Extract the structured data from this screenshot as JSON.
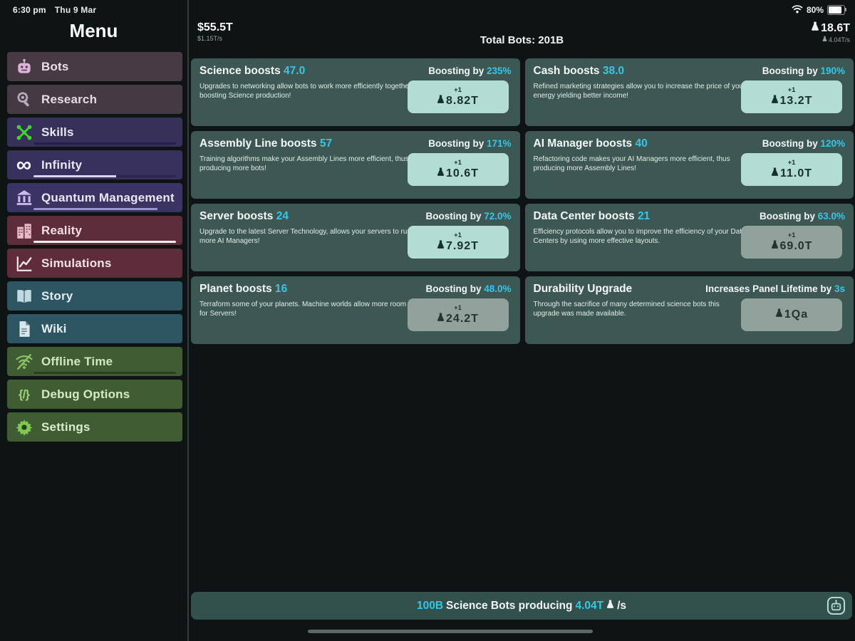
{
  "colors": {
    "accent": "#35c7ea",
    "card_bg": "#3d5852",
    "button_enabled": "#b2dcd4",
    "button_disabled": "#91a29d",
    "bottom_bar_bg": "#32514c"
  },
  "status_bar": {
    "time": "6:30 pm",
    "date": "Thu 9 Mar",
    "battery_percent": "80%",
    "battery_level": 0.8
  },
  "sidebar": {
    "title": "Menu",
    "items": [
      {
        "label": "Bots",
        "icon": "robot-icon",
        "bg": "#473a45",
        "label_color": "#ecdfe9",
        "icon_color": "#dcb4d6"
      },
      {
        "label": "Research",
        "icon": "research-icon",
        "bg": "#453a44",
        "label_color": "#e6dbe4",
        "icon_color": "#bcabbc"
      },
      {
        "label": "Skills",
        "icon": "network-icon",
        "bg": "#37315a",
        "label_color": "#e9e6f4",
        "icon_color": "#3ed62c",
        "progress": {
          "fill": 0,
          "fill_color": "#d8d4f4",
          "track_color": "#262051"
        }
      },
      {
        "label": "Infinity",
        "icon": "infinity-icon",
        "bg": "#38315e",
        "label_color": "#e9e6f6",
        "icon_color": "#f4f2fc",
        "progress": {
          "fill": 0.58,
          "fill_color": "#d9d5f5",
          "track_color": "#2a2450"
        }
      },
      {
        "label": "Quantum Management",
        "icon": "bank-icon",
        "bg": "#3a3363",
        "label_color": "#ece6f9",
        "icon_color": "#cabdee",
        "progress": {
          "fill": 0.87,
          "fill_color": "#9b92cc",
          "track_color": "transparent"
        }
      },
      {
        "label": "Reality",
        "icon": "buildings-icon",
        "bg": "#5e2d3c",
        "label_color": "#f4dfe7",
        "icon_color": "#eab9ca",
        "progress": {
          "fill": 1,
          "fill_color": "#f6eff2",
          "track_color": "transparent"
        }
      },
      {
        "label": "Simulations",
        "icon": "chart-icon",
        "bg": "#5e2c3a",
        "label_color": "#f4e3e9",
        "icon_color": "#f2e8ec"
      },
      {
        "label": "Story",
        "icon": "book-icon",
        "bg": "#2d5662",
        "label_color": "#dfedf2",
        "icon_color": "#c0dae4"
      },
      {
        "label": "Wiki",
        "icon": "document-icon",
        "bg": "#2d5662",
        "label_color": "#e4f0f4",
        "icon_color": "#d8e8ee"
      },
      {
        "label": "Offline Time",
        "icon": "wifi-off-icon",
        "bg": "#405c33",
        "label_color": "#d2e8c0",
        "icon_color": "#8fc268",
        "progress": {
          "fill": 1,
          "fill_color": "#2b401f",
          "track_color": "transparent"
        }
      },
      {
        "label": "Debug Options",
        "icon": "code-icon",
        "bg": "#405c33",
        "label_color": "#d7eac8",
        "icon_color": "#9ed07a"
      },
      {
        "label": "Settings",
        "icon": "gear-icon",
        "bg": "#405c33",
        "label_color": "#daecce",
        "icon_color": "#7ec951"
      }
    ]
  },
  "header": {
    "cash": "$55.5T",
    "cash_rate": "$1.15T/s",
    "total_bots": "Total Bots: 201B",
    "science": "18.6T",
    "science_rate": "4.04T/s"
  },
  "cards": [
    {
      "title": "Science boosts",
      "value": "47.0",
      "boost_label": "Boosting by",
      "boost_value": "235%",
      "description": "Upgrades to networking allow bots to work more efficiently together boosting Science production!",
      "button": {
        "plus": "+1",
        "cost": "8.82T",
        "enabled": true
      }
    },
    {
      "title": "Cash boosts",
      "value": "38.0",
      "boost_label": "Boosting by",
      "boost_value": "190%",
      "description": "Refined marketing strategies allow you to increase the price of your energy yielding better income!",
      "button": {
        "plus": "+1",
        "cost": "13.2T",
        "enabled": true
      }
    },
    {
      "title": "Assembly Line boosts",
      "value": "57",
      "boost_label": "Boosting by",
      "boost_value": "171%",
      "description": "Training algorithms make your Assembly Lines more efficient, thus producing more bots!",
      "button": {
        "plus": "+1",
        "cost": "10.6T",
        "enabled": true
      }
    },
    {
      "title": "AI Manager boosts",
      "value": "40",
      "boost_label": "Boosting by",
      "boost_value": "120%",
      "description": "Refactoring code makes your AI Managers more efficient, thus producing more Assembly Lines!",
      "button": {
        "plus": "+1",
        "cost": "11.0T",
        "enabled": true
      }
    },
    {
      "title": "Server boosts",
      "value": "24",
      "boost_label": "Boosting by",
      "boost_value": "72.0%",
      "description": "Upgrade to the latest Server Technology, allows your servers to run more AI Managers!",
      "button": {
        "plus": "+1",
        "cost": "7.92T",
        "enabled": true
      }
    },
    {
      "title": "Data Center boosts",
      "value": "21",
      "boost_label": "Boosting by",
      "boost_value": "63.0%",
      "description": "Efficiency protocols allow you to improve the efficiency of your Data Centers by using more effective layouts.",
      "button": {
        "plus": "+1",
        "cost": "69.0T",
        "enabled": false
      }
    },
    {
      "title": "Planet boosts",
      "value": "16",
      "boost_label": "Boosting by",
      "boost_value": "48.0%",
      "description": "Terraform some of your planets. Machine worlds allow more room for Servers!",
      "button": {
        "plus": "+1",
        "cost": "24.2T",
        "enabled": false
      }
    },
    {
      "title": "Durability Upgrade",
      "value": "",
      "boost_label": "Increases Panel Lifetime by",
      "boost_value": "3s",
      "description": "Through the sacrifice of many determined science bots this upgrade was made available.",
      "button": {
        "plus": "",
        "cost": "1Qa",
        "enabled": false
      }
    }
  ],
  "bottom_bar": {
    "count": "100B",
    "middle": "Science Bots producing",
    "rate": "4.04T",
    "suffix": "/s"
  }
}
